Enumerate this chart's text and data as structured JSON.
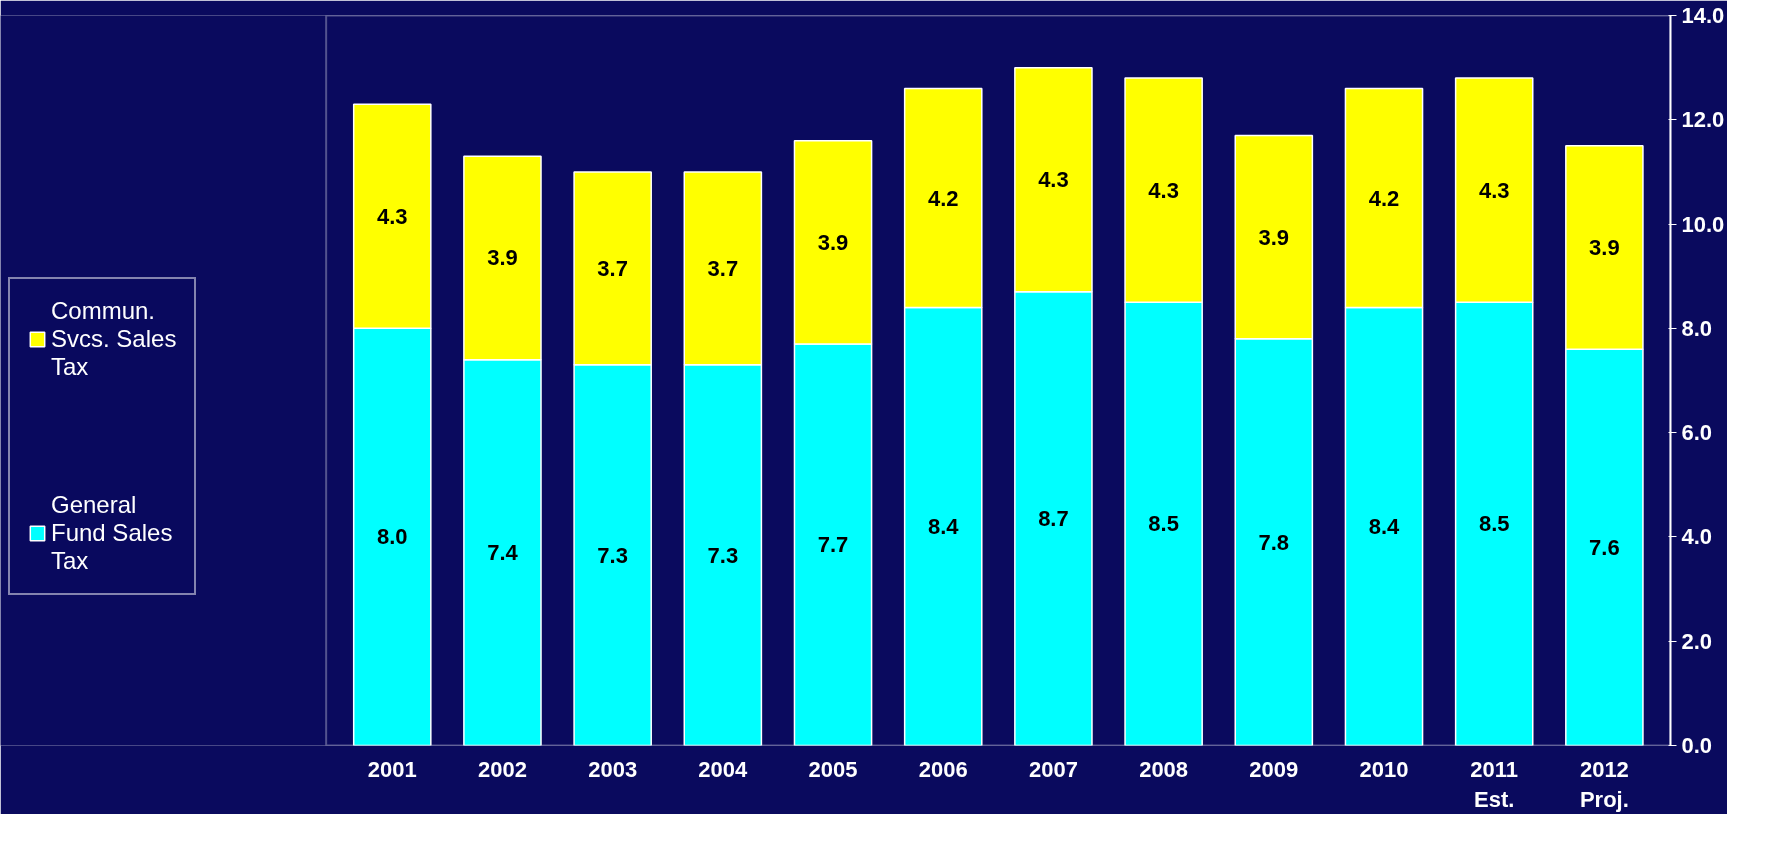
{
  "chart_data": {
    "type": "bar",
    "stacked": true,
    "categories": [
      "2001",
      "2002",
      "2003",
      "2004",
      "2005",
      "2006",
      "2007",
      "2008",
      "2009",
      "2010",
      "2011\nEst.",
      "2012\nProj."
    ],
    "series": [
      {
        "name": "General Fund Sales Tax",
        "color": "#00ffff",
        "values": [
          8.0,
          7.4,
          7.3,
          7.3,
          7.7,
          8.4,
          8.7,
          8.5,
          7.8,
          8.4,
          8.5,
          7.6
        ],
        "value_labels": [
          "8.0",
          "7.4",
          "7.3",
          "7.3",
          "7.7",
          "8.4",
          "8.7",
          "8.5",
          "7.8",
          "8.4",
          "8.5",
          "7.6"
        ]
      },
      {
        "name": "Commun. Svcs. Sales Tax",
        "color": "#ffff00",
        "values": [
          4.3,
          3.9,
          3.7,
          3.7,
          3.9,
          4.2,
          4.3,
          4.3,
          3.9,
          4.2,
          4.3,
          3.9
        ],
        "value_labels": [
          "4.3",
          "3.9",
          "3.7",
          "3.7",
          "3.9",
          "4.2",
          "4.3",
          "4.3",
          "3.9",
          "4.2",
          "4.3",
          "3.9"
        ]
      }
    ],
    "ylim": [
      0,
      14
    ],
    "yticks": [
      {
        "value": 0,
        "label": "0.0"
      },
      {
        "value": 2,
        "label": "2.0"
      },
      {
        "value": 4,
        "label": "4.0"
      },
      {
        "value": 6,
        "label": "6.0"
      },
      {
        "value": 8,
        "label": "8.0"
      },
      {
        "value": 10,
        "label": "10.0"
      },
      {
        "value": 12,
        "label": "12.0"
      },
      {
        "value": 14,
        "label": "14.0"
      }
    ],
    "legend": "left",
    "grid": false
  }
}
